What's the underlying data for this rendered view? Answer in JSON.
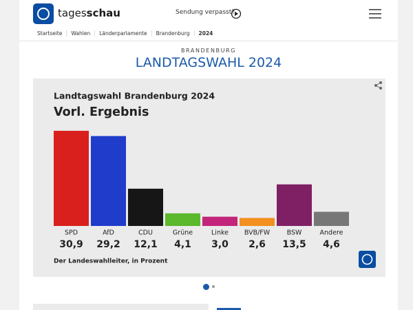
{
  "header": {
    "brand_light": "tages",
    "brand_bold": "schau",
    "missed": "Sendung verpasst?"
  },
  "breadcrumbs": [
    "Startseite",
    "Wahlen",
    "Länderparlamente",
    "Brandenburg",
    "2024"
  ],
  "kicker": "BRANDENBURG",
  "headline": "LANDTAGSWAHL 2024",
  "chart_data": {
    "type": "bar",
    "title": "Landtagswahl Brandenburg 2024",
    "subtitle": "Vorl. Ergebnis",
    "categories": [
      "SPD",
      "AfD",
      "CDU",
      "Grüne",
      "Linke",
      "BVB/FW",
      "BSW",
      "Andere"
    ],
    "values": [
      30.9,
      29.2,
      12.1,
      4.1,
      3.0,
      2.6,
      13.5,
      4.6
    ],
    "value_labels": [
      "30,9",
      "29,2",
      "12,1",
      "4,1",
      "3,0",
      "2,6",
      "13,5",
      "4,6"
    ],
    "colors": [
      "#d9201c",
      "#1f3ccb",
      "#161616",
      "#5cb82c",
      "#c2257a",
      "#f39020",
      "#7f1f64",
      "#777777"
    ],
    "source": "Der Landeswahlleiter, in Prozent"
  }
}
